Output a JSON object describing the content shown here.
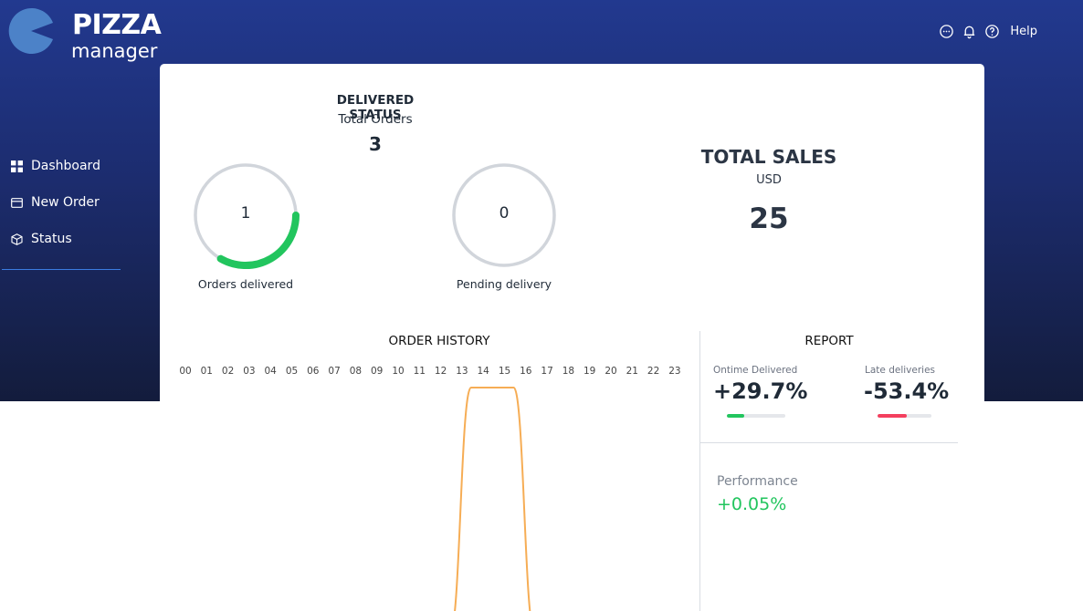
{
  "brand": {
    "line1": "PIZZA",
    "line2": "manager"
  },
  "topbar": {
    "help_label": "Help"
  },
  "nav": {
    "items": [
      {
        "label": "Dashboard",
        "icon": "grid-icon"
      },
      {
        "label": "New Order",
        "icon": "card-icon"
      },
      {
        "label": "Status",
        "icon": "box-icon"
      }
    ]
  },
  "delivered_status": {
    "title": "DELIVERED STATUS",
    "total_orders_label": "Total Orders",
    "total_orders_value": "3",
    "gauges": [
      {
        "value": "1",
        "label": "Orders delivered",
        "fraction": 0.333,
        "color": "#22c55e"
      },
      {
        "value": "0",
        "label": "Pending delivery",
        "fraction": 0,
        "color": "#22c55e"
      }
    ]
  },
  "total_sales": {
    "title": "TOTAL SALES",
    "currency": "USD",
    "value": "25"
  },
  "order_history": {
    "title": "ORDER HISTORY",
    "hours": [
      "00",
      "01",
      "02",
      "03",
      "04",
      "05",
      "06",
      "07",
      "08",
      "09",
      "10",
      "11",
      "12",
      "13",
      "14",
      "15",
      "16",
      "17",
      "18",
      "19",
      "20",
      "21",
      "22",
      "23"
    ]
  },
  "chart_data": {
    "type": "area",
    "title": "ORDER HISTORY",
    "x": [
      "00",
      "01",
      "02",
      "03",
      "04",
      "05",
      "06",
      "07",
      "08",
      "09",
      "10",
      "11",
      "12",
      "13",
      "14",
      "15",
      "16",
      "17",
      "18",
      "19",
      "20",
      "21",
      "22",
      "23"
    ],
    "series": [
      {
        "values": [
          0,
          0,
          0,
          0,
          0,
          0,
          0,
          0,
          0,
          0,
          0,
          0,
          0,
          1,
          1,
          1,
          0,
          0,
          0,
          0,
          0,
          0,
          0,
          0
        ],
        "color": "#f6ad55"
      }
    ]
  },
  "report": {
    "title": "REPORT",
    "ontime_label": "Ontime Delivered",
    "ontime_value": "+29.7%",
    "ontime_level": 0.297,
    "ontime_color": "#22c55e",
    "late_label": "Late deliveries",
    "late_value": "-53.4%",
    "late_level": 0.534,
    "late_color": "#f43f5e",
    "performance_label": "Performance",
    "performance_value": "+0.05%"
  }
}
